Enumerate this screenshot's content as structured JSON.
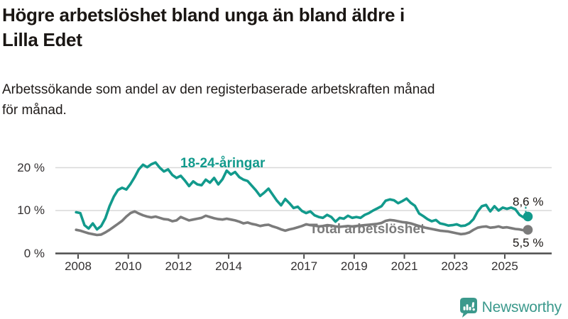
{
  "header": {
    "title_lines": [
      "Högre arbetslöshet bland unga än bland äldre i",
      "Lilla Edet"
    ],
    "subtitle_lines": [
      "Arbetssökande som andel av den registerbaserade arbetskraften månad",
      "för månad."
    ]
  },
  "chart_data": {
    "type": "line",
    "title": "Högre arbetslöshet bland unga än bland äldre i Lilla Edet",
    "subtitle": "Arbetssökande som andel av den registerbaserade arbetskraften månad för månad.",
    "grid": true,
    "x_axis": {
      "range": [
        2007.9,
        2026.1
      ],
      "ticks": [
        {
          "value": 2008,
          "label": "2008"
        },
        {
          "value": 2010,
          "label": "2010"
        },
        {
          "value": 2012,
          "label": "2012"
        },
        {
          "value": 2014,
          "label": "2014"
        },
        {
          "value": 2017,
          "label": "2017"
        },
        {
          "value": 2019,
          "label": "2019"
        },
        {
          "value": 2021,
          "label": "2021"
        },
        {
          "value": 2023,
          "label": "2023"
        },
        {
          "value": 2025,
          "label": "2025"
        }
      ]
    },
    "y_axis": {
      "range": [
        0,
        22
      ],
      "unit": "%",
      "ticks": [
        {
          "value": 20,
          "label": "20 %"
        },
        {
          "value": 10,
          "label": "10 %"
        },
        {
          "value": 0,
          "label": "0 %"
        }
      ]
    },
    "x_start": 2007.92,
    "x_step": 0.16667,
    "series": [
      {
        "name": "Total arbetslöshet",
        "color": "#7b7b7b",
        "end_value": 5.5,
        "end_label": "5,5 %",
        "connector": false,
        "values": [
          5.5,
          5.3,
          5.0,
          4.7,
          4.5,
          4.3,
          4.4,
          4.9,
          5.5,
          6.2,
          6.9,
          7.6,
          8.6,
          9.4,
          9.8,
          9.3,
          8.9,
          8.6,
          8.4,
          8.6,
          8.3,
          8.0,
          7.9,
          7.5,
          7.7,
          8.5,
          8.1,
          7.7,
          7.9,
          8.1,
          8.3,
          8.8,
          8.5,
          8.2,
          8.0,
          7.9,
          8.1,
          7.9,
          7.7,
          7.4,
          7.0,
          7.2,
          6.9,
          6.7,
          6.4,
          6.6,
          6.7,
          6.3,
          6.0,
          5.6,
          5.3,
          5.6,
          5.8,
          6.1,
          6.4,
          6.8,
          6.6,
          6.5,
          6.3,
          6.4,
          6.6,
          6.5,
          6.3,
          6.2,
          6.3,
          6.4,
          6.3,
          6.4,
          6.5,
          6.6,
          6.7,
          6.8,
          6.9,
          7.1,
          7.6,
          7.8,
          7.7,
          7.5,
          7.3,
          7.2,
          7.0,
          6.7,
          6.4,
          6.1,
          5.9,
          5.7,
          5.5,
          5.3,
          5.2,
          5.1,
          4.9,
          4.7,
          4.5,
          4.6,
          4.9,
          5.5,
          6.0,
          6.2,
          6.3,
          6.0,
          6.1,
          6.3,
          6.0,
          6.1,
          5.9,
          5.7,
          5.6,
          5.4,
          5.5
        ]
      },
      {
        "name": "18-24-åringar",
        "color": "#129a8c",
        "end_value": 8.6,
        "end_label": "8,6 %",
        "connector": true,
        "values": [
          9.6,
          9.4,
          6.6,
          5.8,
          7.0,
          5.6,
          6.4,
          8.2,
          11.0,
          13.2,
          14.8,
          15.3,
          14.9,
          16.2,
          17.8,
          19.6,
          20.7,
          20.1,
          20.8,
          21.2,
          20.0,
          19.1,
          19.6,
          18.3,
          17.6,
          18.1,
          17.0,
          15.7,
          16.8,
          16.1,
          15.9,
          17.2,
          16.5,
          17.6,
          16.1,
          17.3,
          19.3,
          18.4,
          19.0,
          17.8,
          17.2,
          16.9,
          15.8,
          14.7,
          13.4,
          14.2,
          15.1,
          13.7,
          12.3,
          11.2,
          12.7,
          11.7,
          10.6,
          10.9,
          9.9,
          9.4,
          9.8,
          8.9,
          8.5,
          8.3,
          9.0,
          8.5,
          7.4,
          8.3,
          8.1,
          8.8,
          8.3,
          8.5,
          8.3,
          9.0,
          9.4,
          10.0,
          10.5,
          11.0,
          12.3,
          12.6,
          12.4,
          11.7,
          12.2,
          12.8,
          11.8,
          11.1,
          9.3,
          8.7,
          8.0,
          7.5,
          7.8,
          7.0,
          6.8,
          6.5,
          6.6,
          6.8,
          6.4,
          6.5,
          7.0,
          8.0,
          9.8,
          11.0,
          11.3,
          9.8,
          11.0,
          10.0,
          10.7,
          10.4,
          10.7,
          10.3,
          9.0,
          8.4,
          8.6
        ]
      }
    ],
    "colors": {
      "axis": "#4d4d4d",
      "grid": "#d8d8d8",
      "tick_text": "#333031",
      "accent_teal": "#129a8c",
      "accent_gray": "#7b7b7b"
    }
  },
  "branding": {
    "wordmark": "Newsworthy",
    "icon": "newsworthy-chart-bubble-icon",
    "color": "#3b998c"
  }
}
